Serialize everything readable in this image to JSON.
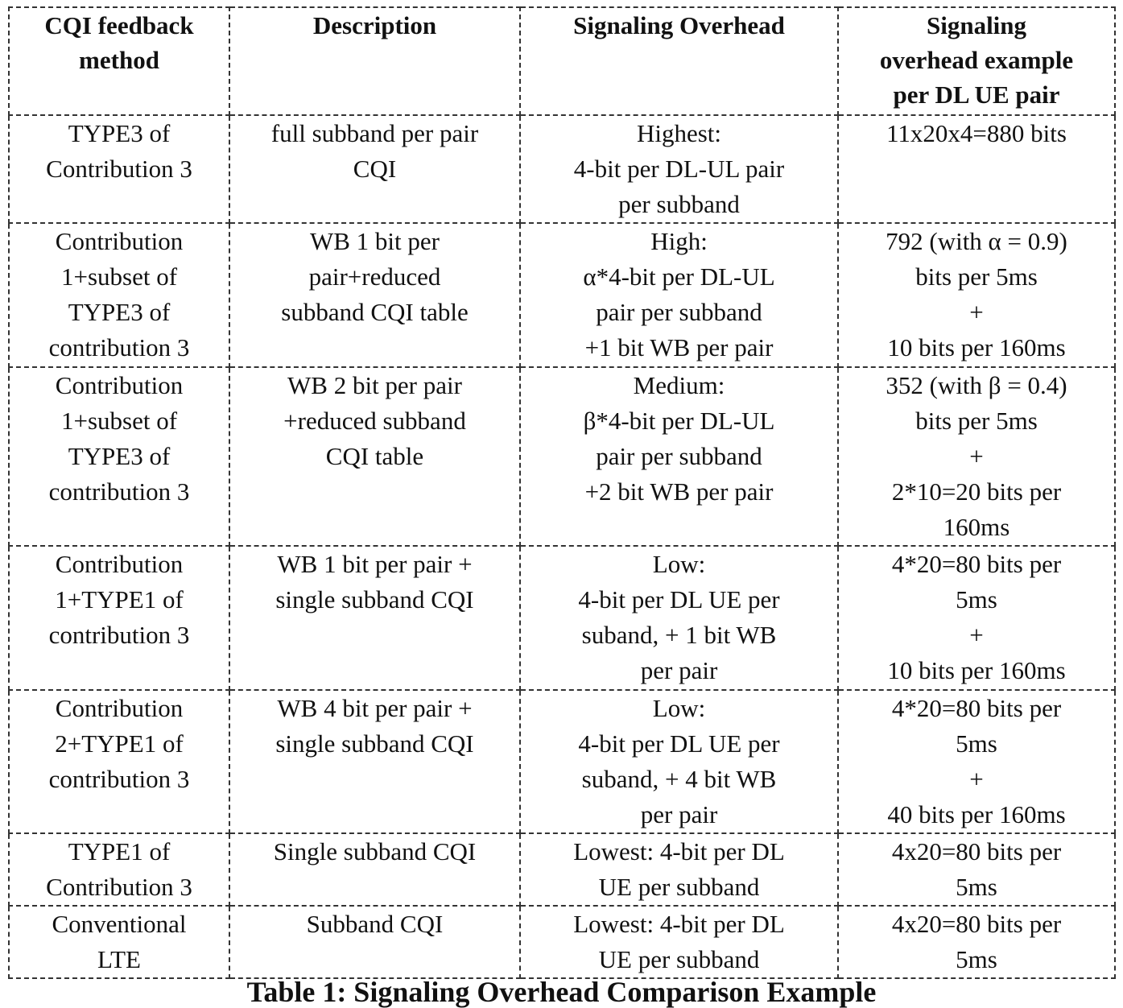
{
  "table": {
    "headers": [
      "CQI feedback\nmethod",
      "Description",
      "Signaling Overhead",
      "Signaling\noverhead example\nper DL UE pair"
    ],
    "rows": [
      [
        "TYPE3 of\nContribution 3",
        "full subband per pair\nCQI",
        "Highest:\n4-bit per DL-UL pair\nper subband",
        "11x20x4=880 bits"
      ],
      [
        "Contribution\n1+subset of\nTYPE3 of\ncontribution 3",
        "WB 1 bit per\npair+reduced\nsubband CQI table",
        "High:\nα*4-bit per DL-UL\npair per subband\n+1 bit WB per pair",
        "792 (with α = 0.9)\nbits per 5ms\n+\n10 bits per 160ms"
      ],
      [
        "Contribution\n1+subset of\nTYPE3 of\ncontribution 3",
        "WB 2 bit per pair\n+reduced subband\nCQI table",
        "Medium:\nβ*4-bit per DL-UL\npair per subband\n+2 bit WB per pair",
        "352 (with β = 0.4)\nbits per 5ms\n+\n2*10=20 bits per\n160ms"
      ],
      [
        "Contribution\n1+TYPE1 of\ncontribution 3",
        "WB 1 bit per pair +\nsingle subband CQI",
        "Low:\n4-bit per DL UE per\nsuband, + 1 bit WB\nper pair",
        "4*20=80 bits per\n5ms\n+\n10 bits per 160ms"
      ],
      [
        "Contribution\n2+TYPE1 of\ncontribution 3",
        "WB 4 bit per pair +\nsingle subband CQI",
        "Low:\n4-bit per DL UE per\nsuband, + 4 bit WB\nper pair",
        "4*20=80 bits per\n5ms\n+\n40 bits per 160ms"
      ],
      [
        "TYPE1 of\nContribution 3",
        "Single subband CQI",
        "Lowest: 4-bit per DL\nUE per subband",
        "4x20=80 bits per\n5ms"
      ],
      [
        "Conventional\nLTE",
        "Subband CQI",
        "Lowest: 4-bit per DL\nUE per subband",
        "4x20=80 bits per\n5ms"
      ]
    ]
  },
  "caption": "Table 1: Signaling Overhead Comparison Example"
}
